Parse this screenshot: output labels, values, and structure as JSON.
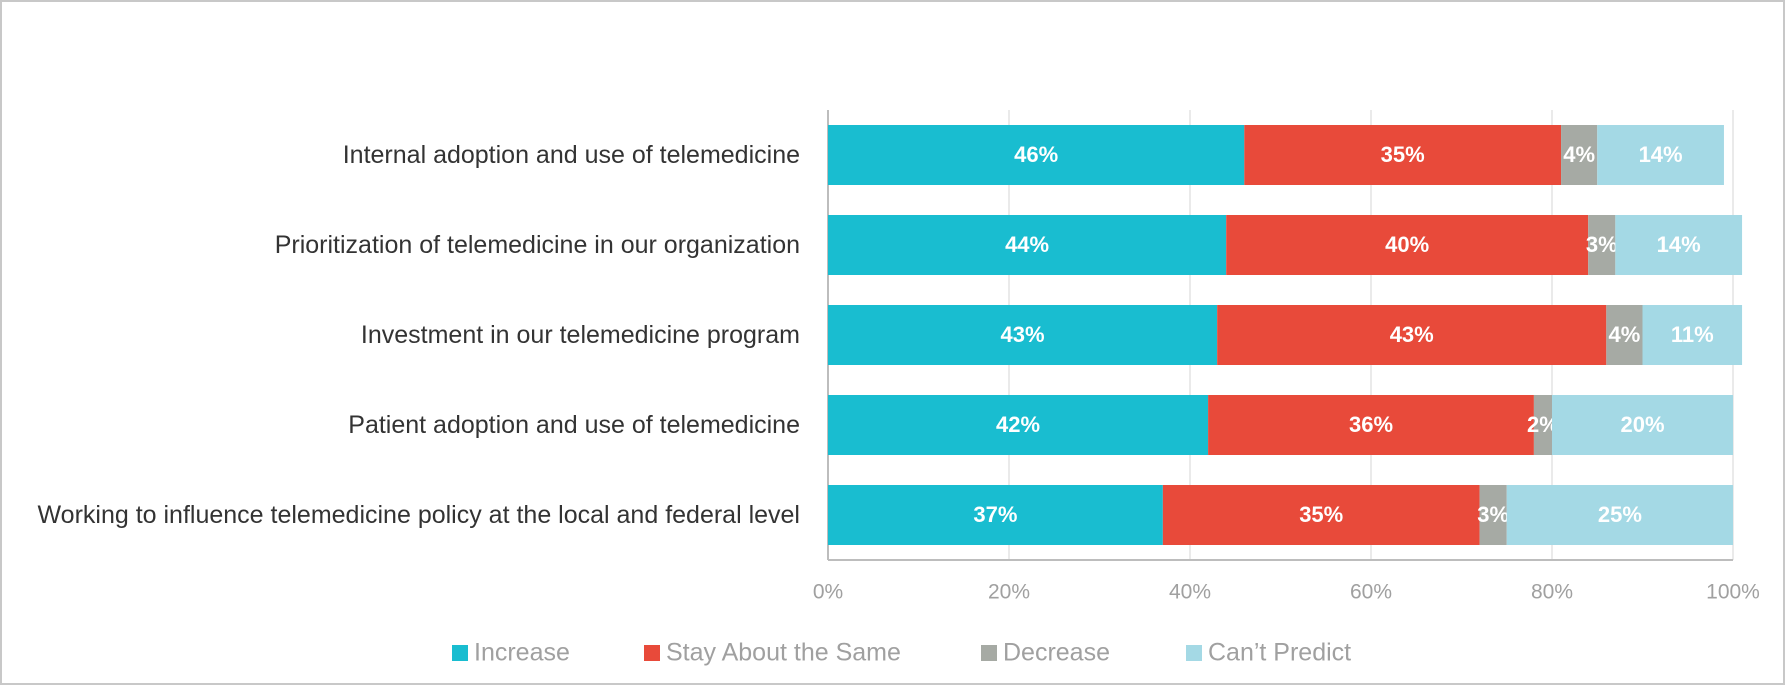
{
  "chart_data": {
    "type": "stacked_bar_horizontal",
    "categories": [
      "Internal adoption and use of telemedicine",
      "Prioritization of telemedicine in our organization",
      "Investment in our telemedicine program",
      "Patient adoption and use of telemedicine",
      "Working to influence telemedicine policy at the local and federal level"
    ],
    "series": [
      {
        "name": "Increase",
        "color": "#19bdd0",
        "values": [
          46,
          44,
          43,
          42,
          37
        ],
        "value_labels": [
          "46%",
          "44%",
          "43%",
          "42%",
          "37%"
        ]
      },
      {
        "name": "Stay About the Same",
        "color": "#e84a3a",
        "values": [
          35,
          40,
          43,
          36,
          35
        ],
        "value_labels": [
          "35%",
          "40%",
          "43%",
          "36%",
          "35%"
        ]
      },
      {
        "name": "Decrease",
        "color": "#a6aaa4",
        "values": [
          4,
          3,
          4,
          2,
          3
        ],
        "value_labels": [
          "4%",
          "3%",
          "4%",
          "2%",
          "3%"
        ]
      },
      {
        "name": "Can’t Predict",
        "color": "#a4d9e5",
        "values": [
          14,
          14,
          11,
          20,
          25
        ],
        "value_labels": [
          "14%",
          "14%",
          "11%",
          "20%",
          "25%"
        ]
      }
    ],
    "xlim": [
      0,
      100
    ],
    "xticks": [
      {
        "value": 0,
        "label": "0%"
      },
      {
        "value": 20,
        "label": "20%"
      },
      {
        "value": 40,
        "label": "40%"
      },
      {
        "value": 60,
        "label": "60%"
      },
      {
        "value": 80,
        "label": "80%"
      },
      {
        "value": 100,
        "label": "100%"
      }
    ],
    "grid": true,
    "legend": "bottom"
  }
}
